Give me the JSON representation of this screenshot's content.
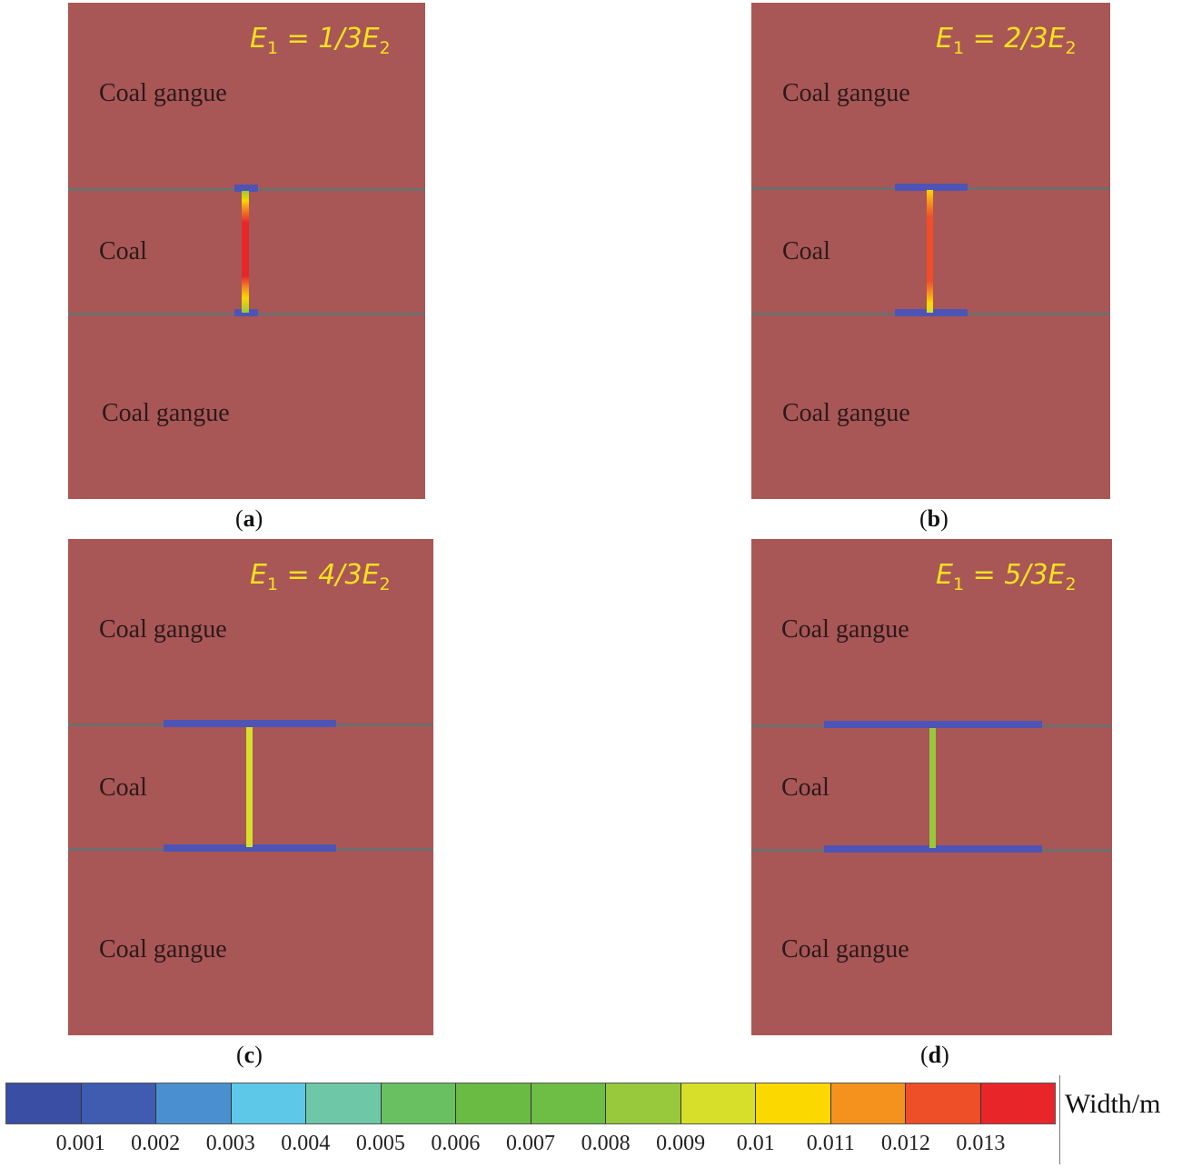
{
  "panels": [
    {
      "caption_letter": "a",
      "equation": {
        "lhs_var": "E",
        "lhs_sub": "1",
        "rhs_coef": "= 1/3",
        "rhs_var": "E",
        "rhs_sub": "2"
      },
      "top_label": "Coal gangue",
      "middle_label": "Coal",
      "bottom_label": "Coal gangue"
    },
    {
      "caption_letter": "b",
      "equation": {
        "lhs_var": "E",
        "lhs_sub": "1",
        "rhs_coef": "= 2/3",
        "rhs_var": "E",
        "rhs_sub": "2"
      },
      "top_label": "Coal gangue",
      "middle_label": "Coal",
      "bottom_label": "Coal gangue"
    },
    {
      "caption_letter": "c",
      "equation": {
        "lhs_var": "E",
        "lhs_sub": "1",
        "rhs_coef": "= 4/3",
        "rhs_var": "E",
        "rhs_sub": "2"
      },
      "top_label": "Coal gangue",
      "middle_label": "Coal",
      "bottom_label": "Coal gangue"
    },
    {
      "caption_letter": "d",
      "equation": {
        "lhs_var": "E",
        "lhs_sub": "1",
        "rhs_coef": "= 5/3",
        "rhs_var": "E",
        "rhs_sub": "2"
      },
      "top_label": "Coal gangue",
      "middle_label": "Coal",
      "bottom_label": "Coal gangue"
    }
  ],
  "legend": {
    "title": "Width/m",
    "colors": [
      "#3a4fa3",
      "#3f5cb0",
      "#4a90d0",
      "#5ec8e8",
      "#6ec8a8",
      "#68c060",
      "#6abb44",
      "#6ebd44",
      "#98c83c",
      "#d8df2a",
      "#fad800",
      "#f5921e",
      "#ee4e28",
      "#e8262a"
    ],
    "ticks": [
      "0.001",
      "0.002",
      "0.003",
      "0.004",
      "0.005",
      "0.006",
      "0.007",
      "0.008",
      "0.009",
      "0.01",
      "0.011",
      "0.012",
      "0.013"
    ]
  },
  "colors": {
    "rock": "#a95656",
    "interface": "#6e6e6e",
    "equation": "#f5e11e"
  }
}
